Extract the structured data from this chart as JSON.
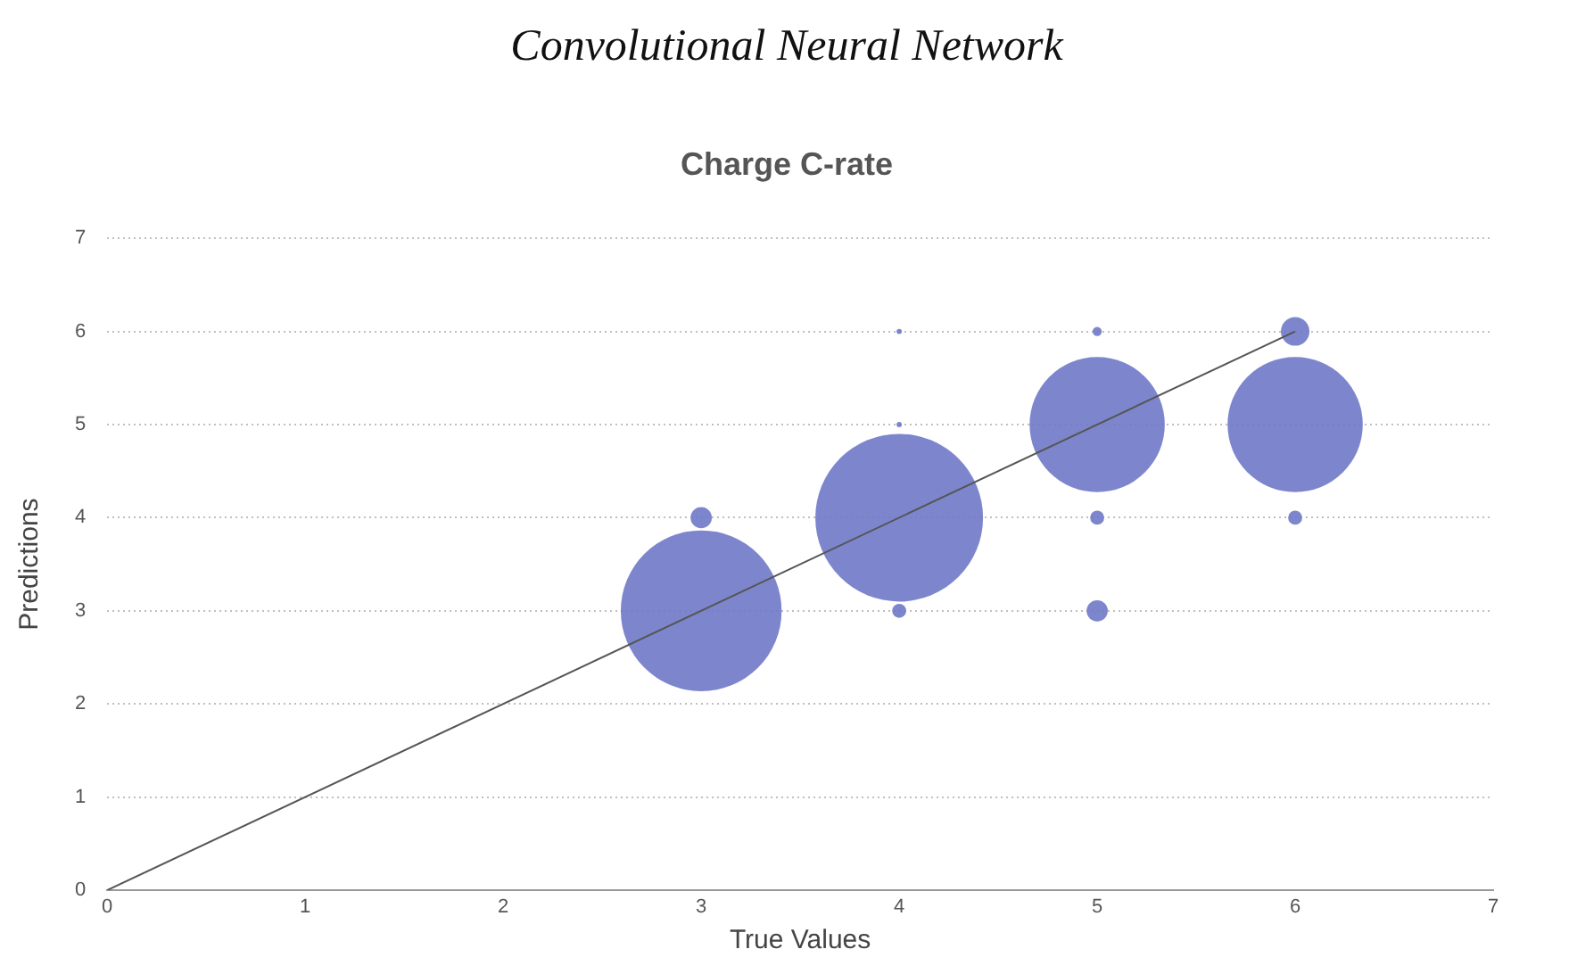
{
  "chart_data": {
    "type": "bubble",
    "title": "Convolutional Neural Network",
    "subtitle": "Charge C-rate",
    "xlabel": "True Values",
    "ylabel": "Predictions",
    "series": [
      {
        "type": "bubble",
        "color": "#6f79c7",
        "x": [
          3,
          3,
          4,
          4,
          4,
          4,
          5,
          5,
          5,
          5,
          6,
          6,
          6
        ],
        "values": [
          3,
          4,
          4,
          3,
          5,
          6,
          5,
          6,
          4,
          3,
          5,
          6,
          4
        ],
        "sizes": [
          0.92,
          0.016,
          1,
          0.007,
          0.001,
          0.001,
          0.65,
          0.003,
          0.007,
          0.016,
          0.65,
          0.029,
          0.007
        ]
      },
      {
        "type": "line",
        "color": "#555555",
        "x": [
          0,
          6
        ],
        "values": [
          0,
          6
        ],
        "marker": "none"
      }
    ],
    "xlim": [
      0,
      7
    ],
    "xticks": [
      0,
      1,
      2,
      3,
      4,
      5,
      6,
      7
    ],
    "ylim": [
      0,
      7
    ],
    "yticks": [
      0,
      1,
      2,
      3,
      4,
      5,
      6,
      7
    ],
    "grid": "y",
    "legend": false
  }
}
